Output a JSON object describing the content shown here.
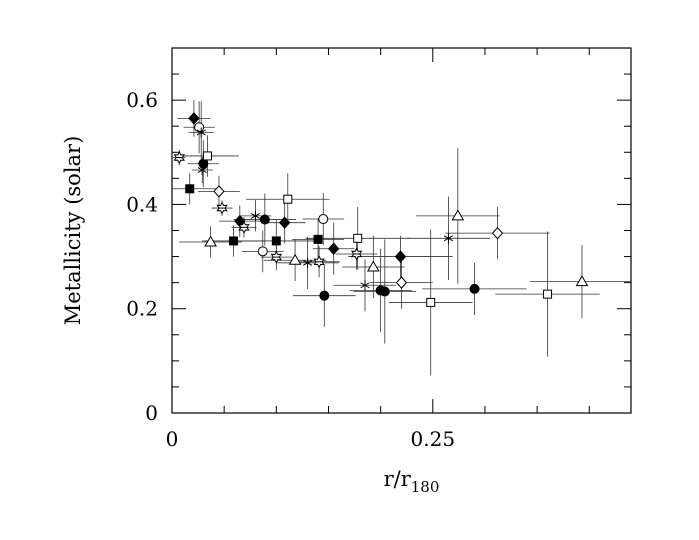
{
  "chart_data": {
    "type": "scatter",
    "xlabel": "r/r",
    "xlabel_subscript": "180",
    "ylabel": "Metallicity (solar)",
    "xlim": [
      0,
      0.44
    ],
    "ylim": [
      0,
      0.7
    ],
    "x_tick_labels": [
      {
        "value": 0,
        "label": "0"
      },
      {
        "value": 0.25,
        "label": "0.25"
      }
    ],
    "y_tick_labels": [
      {
        "value": 0,
        "label": "0"
      },
      {
        "value": 0.2,
        "label": "0.2"
      },
      {
        "value": 0.4,
        "label": "0.4"
      },
      {
        "value": 0.6,
        "label": "0.6"
      }
    ],
    "x_minor_step": 0.05,
    "y_minor_step": 0.05,
    "grid": false,
    "legend": "none",
    "series": [
      {
        "marker": "filled-diamond",
        "points": [
          {
            "x": 0.021,
            "y": 0.565,
            "xerr": 0.016,
            "yerr": 0.035
          },
          {
            "x": 0.065,
            "y": 0.368,
            "xerr": 0.02,
            "yerr": 0.03
          },
          {
            "x": 0.108,
            "y": 0.365,
            "xerr": 0.02,
            "yerr": 0.04
          },
          {
            "x": 0.155,
            "y": 0.315,
            "xerr": 0.02,
            "yerr": 0.05
          },
          {
            "x": 0.219,
            "y": 0.3,
            "xerr": 0.05,
            "yerr": 0.04
          }
        ]
      },
      {
        "marker": "filled-circle",
        "points": [
          {
            "x": 0.03,
            "y": 0.478,
            "xerr": 0.015,
            "yerr": 0.045
          },
          {
            "x": 0.089,
            "y": 0.371,
            "xerr": 0.03,
            "yerr": 0.05
          },
          {
            "x": 0.146,
            "y": 0.225,
            "xerr": 0.03,
            "yerr": 0.06
          },
          {
            "x": 0.2,
            "y": 0.235,
            "xerr": 0.03,
            "yerr": 0.08
          },
          {
            "x": 0.204,
            "y": 0.233,
            "xerr": 0.03,
            "yerr": 0.1
          },
          {
            "x": 0.29,
            "y": 0.238,
            "xerr": 0.05,
            "yerr": 0.05
          }
        ]
      },
      {
        "marker": "filled-square",
        "points": [
          {
            "x": 0.017,
            "y": 0.43,
            "xerr": 0.025,
            "yerr": 0.03
          },
          {
            "x": 0.059,
            "y": 0.33,
            "xerr": 0.03,
            "yerr": 0.03
          },
          {
            "x": 0.1,
            "y": 0.33,
            "xerr": 0.04,
            "yerr": 0.04
          },
          {
            "x": 0.14,
            "y": 0.333,
            "xerr": 0.025,
            "yerr": 0.04
          }
        ]
      },
      {
        "marker": "open-circle",
        "points": [
          {
            "x": 0.026,
            "y": 0.548,
            "xerr": 0.015,
            "yerr": 0.05
          },
          {
            "x": 0.087,
            "y": 0.31,
            "xerr": 0.02,
            "yerr": 0.04
          },
          {
            "x": 0.145,
            "y": 0.372,
            "xerr": 0.02,
            "yerr": 0.05
          }
        ]
      },
      {
        "marker": "open-square",
        "points": [
          {
            "x": 0.034,
            "y": 0.493,
            "xerr": 0.03,
            "yerr": 0.04
          },
          {
            "x": 0.111,
            "y": 0.41,
            "xerr": 0.04,
            "yerr": 0.05
          },
          {
            "x": 0.178,
            "y": 0.335,
            "xerr": 0.05,
            "yerr": 0.06
          },
          {
            "x": 0.248,
            "y": 0.212,
            "xerr": 0.04,
            "yerr": 0.14
          },
          {
            "x": 0.36,
            "y": 0.228,
            "xerr": 0.05,
            "yerr": 0.12
          }
        ]
      },
      {
        "marker": "open-triangle",
        "points": [
          {
            "x": 0.037,
            "y": 0.328,
            "xerr": 0.03,
            "yerr": 0.03
          },
          {
            "x": 0.118,
            "y": 0.293,
            "xerr": 0.03,
            "yerr": 0.04
          },
          {
            "x": 0.193,
            "y": 0.28,
            "xerr": 0.03,
            "yerr": 0.06
          },
          {
            "x": 0.274,
            "y": 0.378,
            "xerr": 0.04,
            "yerr": 0.13
          },
          {
            "x": 0.393,
            "y": 0.252,
            "xerr": 0.05,
            "yerr": 0.07
          }
        ]
      },
      {
        "marker": "open-diamond",
        "points": [
          {
            "x": 0.045,
            "y": 0.425,
            "xerr": 0.02,
            "yerr": 0.03
          },
          {
            "x": 0.22,
            "y": 0.25,
            "xerr": 0.03,
            "yerr": 0.05
          },
          {
            "x": 0.312,
            "y": 0.345,
            "xerr": 0.05,
            "yerr": 0.05
          }
        ]
      },
      {
        "marker": "asterisk",
        "points": [
          {
            "x": 0.028,
            "y": 0.538,
            "xerr": 0.012,
            "yerr": 0.06
          },
          {
            "x": 0.029,
            "y": 0.466,
            "xerr": 0.01,
            "yerr": 0.025
          },
          {
            "x": 0.08,
            "y": 0.378,
            "xerr": 0.015,
            "yerr": 0.03
          },
          {
            "x": 0.13,
            "y": 0.288,
            "xerr": 0.03,
            "yerr": 0.05
          },
          {
            "x": 0.185,
            "y": 0.245,
            "xerr": 0.03,
            "yerr": 0.05
          },
          {
            "x": 0.265,
            "y": 0.335,
            "xerr": 0.04,
            "yerr": 0.08
          }
        ]
      },
      {
        "marker": "star",
        "points": [
          {
            "x": 0.007,
            "y": 0.49,
            "xerr": 0.006,
            "yerr": 0.015
          },
          {
            "x": 0.048,
            "y": 0.393,
            "xerr": 0.01,
            "yerr": 0.015
          },
          {
            "x": 0.069,
            "y": 0.356,
            "xerr": 0.012,
            "yerr": 0.02
          },
          {
            "x": 0.1,
            "y": 0.299,
            "xerr": 0.015,
            "yerr": 0.025
          },
          {
            "x": 0.141,
            "y": 0.29,
            "xerr": 0.02,
            "yerr": 0.03
          },
          {
            "x": 0.177,
            "y": 0.305,
            "xerr": 0.02,
            "yerr": 0.03
          }
        ]
      }
    ]
  }
}
